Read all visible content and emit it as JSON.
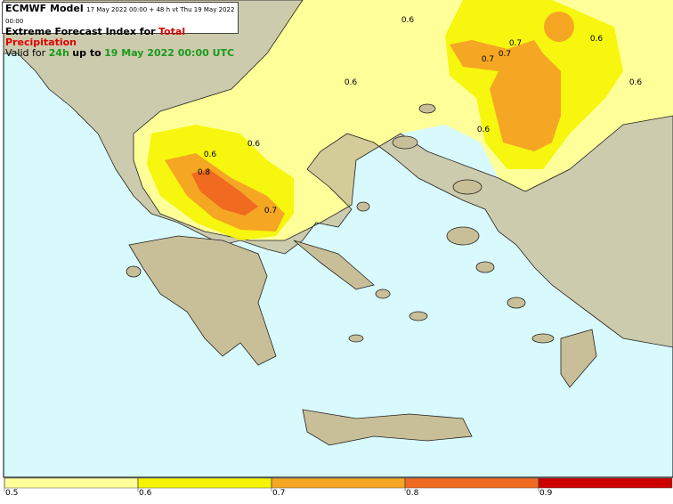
{
  "header": {
    "model": "ECMWF Model",
    "run": "17 May 2022 00:00 + 48 h vt Thu 19 May 2022 00:00",
    "title_prefix": "Extreme Forecast Index for",
    "title_param": "Total Precipitation",
    "valid_prefix": "Valid for",
    "period": "24h",
    "up_to": "up to",
    "valid_time": "19 May 2022 00:00 UTC"
  },
  "contour_labels": [
    "0.6",
    "0.6",
    "0.7",
    "0.7",
    "0.7",
    "0.6",
    "0.6",
    "0.6",
    "0.6",
    "0.6",
    "0.8",
    "0.7"
  ],
  "legend": {
    "ticks": [
      0.5,
      0.6,
      0.7,
      0.8,
      0.9
    ],
    "colors": [
      "#ffff99",
      "#f5f500",
      "#f5a623",
      "#f06a20",
      "#cc0000"
    ]
  }
}
